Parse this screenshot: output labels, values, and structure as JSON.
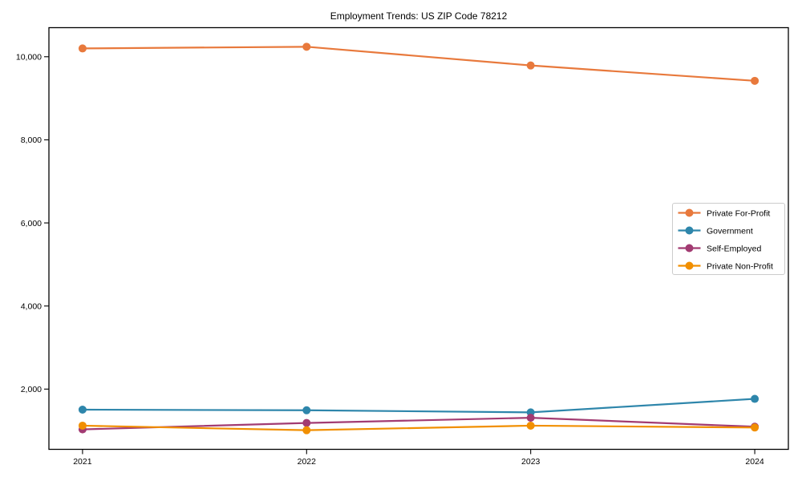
{
  "chart_data": {
    "type": "line",
    "title": "Employment Trends: US ZIP Code 78212",
    "categories": [
      2021,
      2022,
      2023,
      2024
    ],
    "series": [
      {
        "name": "Private For-Profit",
        "color": "#E8793C",
        "values": [
          10200,
          10240,
          9790,
          9420
        ]
      },
      {
        "name": "Government",
        "color": "#2E86AB",
        "values": [
          1505,
          1490,
          1440,
          1765
        ]
      },
      {
        "name": "Self-Employed",
        "color": "#A23B72",
        "values": [
          1030,
          1185,
          1310,
          1095
        ]
      },
      {
        "name": "Private Non-Profit",
        "color": "#F18F01",
        "values": [
          1120,
          1010,
          1120,
          1075
        ]
      }
    ],
    "xlabel": "",
    "ylabel": "",
    "x_tick_labels": [
      "2021",
      "2022",
      "2023",
      "2024"
    ],
    "y_ticks": [
      2000,
      4000,
      6000,
      8000,
      10000
    ],
    "y_tick_labels": [
      "2,000",
      "4,000",
      "6,000",
      "8,000",
      "10,000"
    ],
    "xlim": [
      2020.85,
      2024.15
    ],
    "ylim": [
      550,
      10700
    ],
    "grid": false,
    "legend_position": "center right",
    "legend_entries": [
      "Private For-Profit",
      "Government",
      "Self-Employed",
      "Private Non-Profit"
    ],
    "marker": "circle",
    "axis_color": "#000000",
    "legend_border_color": "#cccccc",
    "background_color": "#ffffff"
  }
}
